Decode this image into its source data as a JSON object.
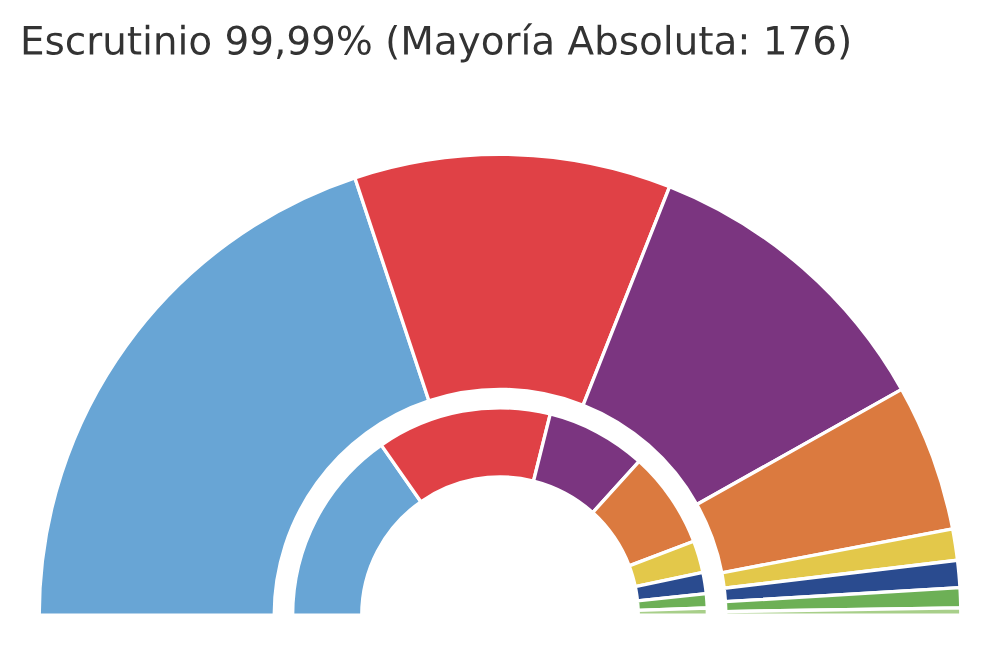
{
  "chart_data": {
    "type": "donut",
    "title": "Escrutinio 99,99% (Mayoría Absoluta: 176)",
    "categories": [
      null,
      null,
      null,
      null,
      null,
      null,
      null,
      null
    ],
    "colors": [
      "#68a5d5",
      "#e04146",
      "#7b3580",
      "#db7a3f",
      "#e3c84a",
      "#2a4b8f",
      "#6db056",
      "#a8cf8a"
    ],
    "series": [
      {
        "values": [
          39.8,
          22.2,
          21.7,
          10.3,
          2.2,
          1.9,
          1.4,
          0.5
        ]
      },
      {
        "values": [
          30.6,
          27.2,
          15.6,
          15.0,
          5.0,
          3.3,
          2.2,
          1.1
        ]
      }
    ]
  }
}
